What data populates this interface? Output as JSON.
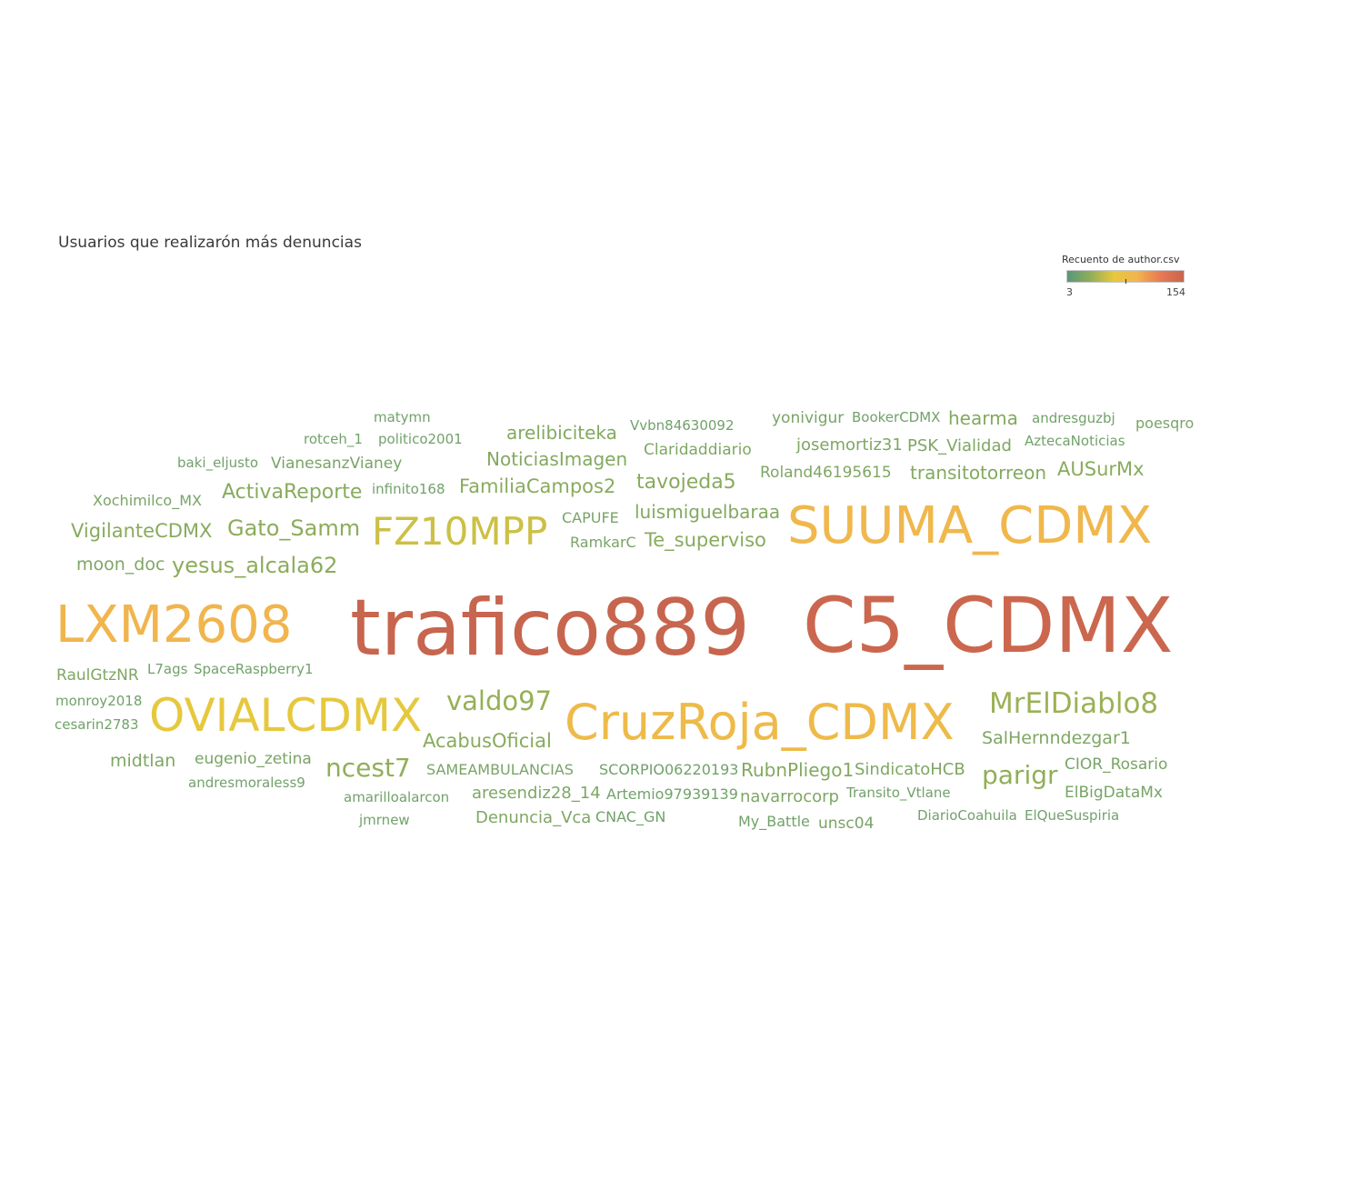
{
  "title": "Usuarios que realizarón más denuncias",
  "legend": {
    "title": "Recuento de author.csv",
    "min_label": "3",
    "max_label": "154",
    "gradient": [
      "#56977a",
      "#91ae58",
      "#e6c83e",
      "#f2b44e",
      "#e77a52",
      "#c7654e"
    ]
  },
  "chart_data": {
    "type": "wordcloud",
    "value_range": [
      3,
      154
    ],
    "words": [
      {
        "text": "trafico889",
        "value": 154
      },
      {
        "text": "C5_CDMX",
        "value": 148
      },
      {
        "text": "SUUMA_CDMX",
        "value": 58
      },
      {
        "text": "LXM2608",
        "value": 60
      },
      {
        "text": "CruzRoja_CDMX",
        "value": 52
      },
      {
        "text": "OVIALCDMX",
        "value": 32
      },
      {
        "text": "FZ10MPP",
        "value": 24
      },
      {
        "text": "MrElDiablo8",
        "value": 13
      },
      {
        "text": "valdo97",
        "value": 12
      },
      {
        "text": "ncest7",
        "value": 11
      },
      {
        "text": "parigr",
        "value": 11
      },
      {
        "text": "yesus_alcala62",
        "value": 10
      },
      {
        "text": "Gato_Samm",
        "value": 10
      },
      {
        "text": "VigilanteCDMX",
        "value": 9
      },
      {
        "text": "ActivaReporte",
        "value": 9
      },
      {
        "text": "AcabusOficial",
        "value": 9
      },
      {
        "text": "tavojeda5",
        "value": 9
      },
      {
        "text": "FamiliaCampos2",
        "value": 9
      },
      {
        "text": "Te_superviso",
        "value": 9
      },
      {
        "text": "AUSurMx",
        "value": 9
      },
      {
        "text": "RubnPliego1",
        "value": 8
      },
      {
        "text": "arelibiciteka",
        "value": 8
      },
      {
        "text": "NoticiasImagen",
        "value": 8
      },
      {
        "text": "luismiguelbaraa",
        "value": 8
      },
      {
        "text": "transitotorreon",
        "value": 8
      },
      {
        "text": "hearma",
        "value": 8
      },
      {
        "text": "moon_doc",
        "value": 7
      },
      {
        "text": "RaulGtzNR",
        "value": 7
      },
      {
        "text": "midtlan",
        "value": 7
      },
      {
        "text": "navarrocorp",
        "value": 7
      },
      {
        "text": "SalHernndezgar1",
        "value": 7
      },
      {
        "text": "SindicatoHCB",
        "value": 7
      },
      {
        "text": "aresendiz28_14",
        "value": 7
      },
      {
        "text": "Denuncia_Vca",
        "value": 7
      },
      {
        "text": "PSK_Vialidad",
        "value": 7
      },
      {
        "text": "josemortiz31",
        "value": 7
      },
      {
        "text": "Roland46195615",
        "value": 7
      },
      {
        "text": "Claridaddiario",
        "value": 7
      },
      {
        "text": "Xochimilco_MX",
        "value": 6
      },
      {
        "text": "eugenio_zetina",
        "value": 6
      },
      {
        "text": "yonivigur",
        "value": 6
      },
      {
        "text": "CIOR_Rosario",
        "value": 6
      },
      {
        "text": "ElBigDataMx",
        "value": 6
      },
      {
        "text": "unsc04",
        "value": 6
      },
      {
        "text": "SAMEAMBULANCIAS",
        "value": 6
      },
      {
        "text": "CAPUFE",
        "value": 6
      },
      {
        "text": "RamkarC",
        "value": 6
      },
      {
        "text": "poesqro",
        "value": 6
      },
      {
        "text": "VianesanzVianey",
        "value": 6
      },
      {
        "text": "monroy2018",
        "value": 5
      },
      {
        "text": "cesarin2783",
        "value": 5
      },
      {
        "text": "L7ags",
        "value": 5
      },
      {
        "text": "SpaceRaspberry1",
        "value": 5
      },
      {
        "text": "baki_eljusto",
        "value": 5
      },
      {
        "text": "rotceh_1",
        "value": 5
      },
      {
        "text": "politico2001",
        "value": 5
      },
      {
        "text": "matymn",
        "value": 5
      },
      {
        "text": "infinito168",
        "value": 5
      },
      {
        "text": "Vvbn84630092",
        "value": 5
      },
      {
        "text": "BookerCDMX",
        "value": 5
      },
      {
        "text": "andresguzbj",
        "value": 5
      },
      {
        "text": "AztecaNoticias",
        "value": 5
      },
      {
        "text": "andresmoraless9",
        "value": 5
      },
      {
        "text": "amarilloalarcon",
        "value": 5
      },
      {
        "text": "jmrnew",
        "value": 5
      },
      {
        "text": "Artemio97939139",
        "value": 5
      },
      {
        "text": "CNAC_GN",
        "value": 5
      },
      {
        "text": "SCORPIO06220193",
        "value": 5
      },
      {
        "text": "My_Battle",
        "value": 5
      },
      {
        "text": "Transito_Vtlane",
        "value": 5
      },
      {
        "text": "DiarioCoahuila",
        "value": 5
      },
      {
        "text": "ElQueSuspiria",
        "value": 5
      }
    ]
  }
}
